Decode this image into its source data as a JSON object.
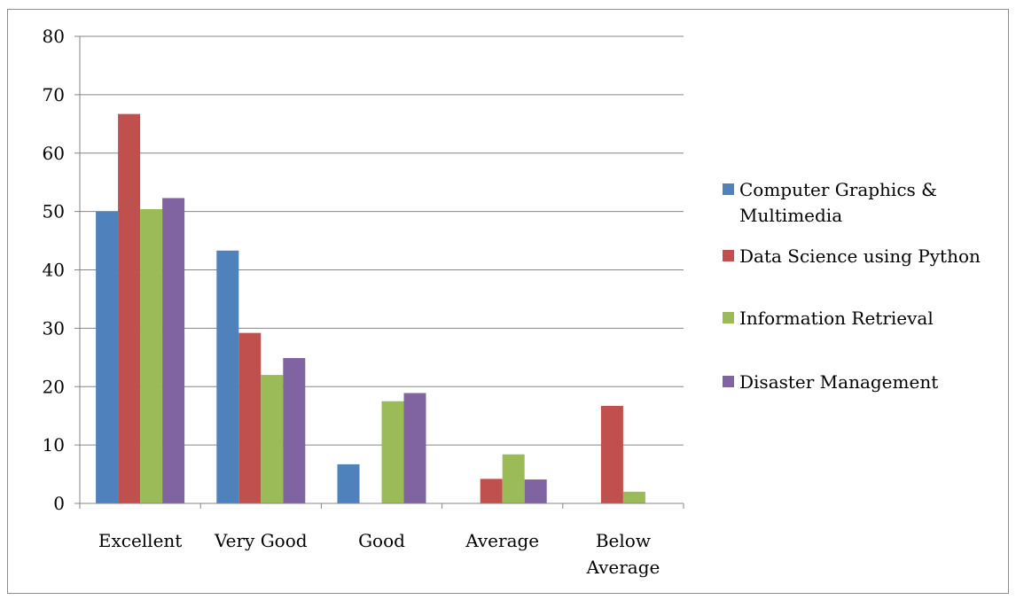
{
  "chart_data": {
    "type": "bar",
    "categories": [
      "Excellent",
      "Very Good",
      "Good",
      "Average",
      "Below Average"
    ],
    "category_lines": [
      [
        "Excellent"
      ],
      [
        "Very Good"
      ],
      [
        "Good"
      ],
      [
        "Average"
      ],
      [
        "Below",
        "Average"
      ]
    ],
    "series": [
      {
        "name": "Computer Graphics & Multimedia",
        "legend_lines": [
          "Computer Graphics &",
          "Multimedia"
        ],
        "color": "#4f81bd",
        "values": [
          50,
          43.3,
          6.7,
          0,
          0
        ]
      },
      {
        "name": "Data Science using Python",
        "legend_lines": [
          "Data Science using Python"
        ],
        "color": "#c0504d",
        "values": [
          66.7,
          29.2,
          0,
          4.2,
          16.7
        ]
      },
      {
        "name": "Information Retrieval",
        "legend_lines": [
          "Information Retrieval"
        ],
        "color": "#9bbb59",
        "values": [
          50.4,
          22,
          17.5,
          8.4,
          2
        ]
      },
      {
        "name": "Disaster Management",
        "legend_lines": [
          "Disaster Management"
        ],
        "color": "#8064a2",
        "values": [
          52.3,
          24.9,
          18.9,
          4.1,
          0
        ]
      }
    ],
    "ylim": [
      0,
      80
    ],
    "yticks": [
      0,
      10,
      20,
      30,
      40,
      50,
      60,
      70,
      80
    ],
    "grid": true,
    "legend_position": "right",
    "title": "",
    "xlabel": "",
    "ylabel": ""
  }
}
